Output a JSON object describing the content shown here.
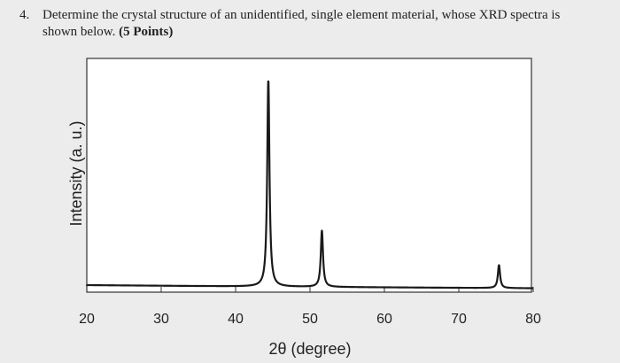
{
  "question": {
    "number": "4.",
    "text_line1": "Determine the crystal structure of an unidentified, single element material, whose XRD spectra is",
    "text_line2": "shown below.",
    "points": "(5 Points)"
  },
  "chart_data": {
    "type": "line",
    "title": "",
    "xlabel": "2θ (degree)",
    "ylabel": "Intensity (a. u.)",
    "xlim": [
      20,
      80
    ],
    "xticks": [
      20,
      30,
      40,
      50,
      60,
      70,
      80
    ],
    "ylim": [
      0,
      100
    ],
    "grid": false,
    "baseline": [
      [
        17,
        2.2
      ],
      [
        44,
        1.4
      ],
      [
        80,
        0.6
      ]
    ],
    "peaks": [
      {
        "x": 44.4,
        "height": 100
      },
      {
        "x": 51.6,
        "height": 27
      },
      {
        "x": 75.4,
        "height": 11
      }
    ],
    "colors": {
      "line": "#1a1a1a",
      "frame": "#333333",
      "background": "#ffffff"
    }
  }
}
